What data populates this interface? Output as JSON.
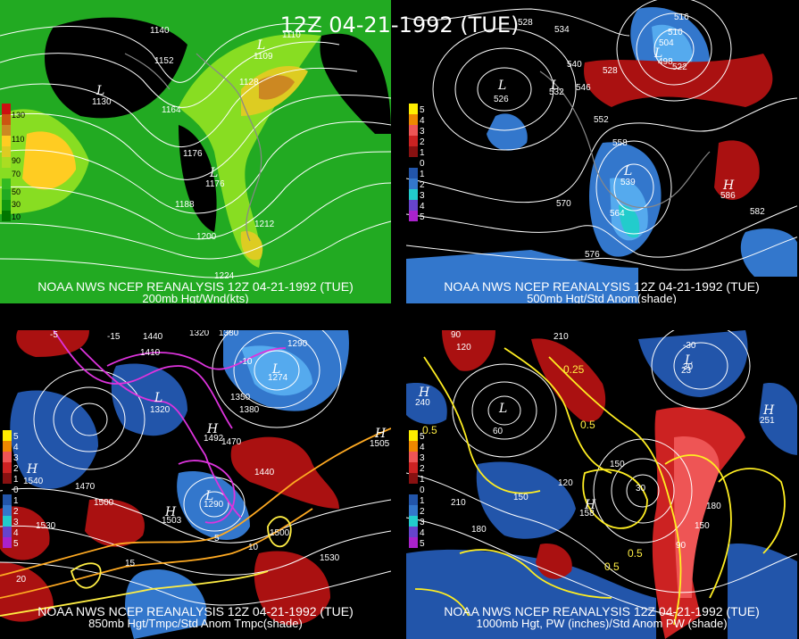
{
  "title": "12Z 04-21-1992 (TUE)",
  "panels": {
    "p200": {
      "source": "NOAA NWS NCEP REANALYSIS 12Z 04-21-1992 (TUE)",
      "field": "200mb Hgt/Wnd(kts)",
      "contour_labels": [
        "1140",
        "1152",
        "1164",
        "1176",
        "1188",
        "1200",
        "1212",
        "1224",
        "1128",
        "1110"
      ],
      "lows": [
        {
          "letter": "L",
          "value": "1130"
        },
        {
          "letter": "L",
          "value": "1176"
        },
        {
          "letter": "L",
          "value": "1109"
        }
      ],
      "legend": [
        "130",
        "110",
        "90",
        "70",
        "50",
        "30",
        "10"
      ]
    },
    "p500": {
      "source": "NOAA NWS NCEP REANALYSIS 12Z 04-21-1992 (TUE)",
      "field": "500mb Hgt/Std Anom(shade)",
      "contour_labels": [
        "528",
        "534",
        "540",
        "546",
        "552",
        "558",
        "570",
        "564",
        "576",
        "582",
        "516",
        "510",
        "504",
        "522",
        "528"
      ],
      "lows": [
        {
          "letter": "L",
          "value": "526"
        },
        {
          "letter": "L",
          "value": "498"
        },
        {
          "letter": "L",
          "value": "532"
        },
        {
          "letter": "L",
          "value": "539"
        }
      ],
      "highs": [
        {
          "letter": "H",
          "value": "586"
        }
      ],
      "legend": [
        "5",
        "4",
        "3",
        "2",
        "1",
        "0",
        "1",
        "2",
        "3",
        "4",
        "5"
      ]
    },
    "p850": {
      "source": "NOAA NWS NCEP REANALYSIS 12Z 04-21-1992 (TUE)",
      "field": "850mb Hgt/Tmpc/Std Anom Tmpc(shade)",
      "contour_labels": [
        "1440",
        "1410",
        "1320",
        "1380",
        "1290",
        "1350",
        "1380",
        "1470",
        "1500",
        "1530",
        "1470",
        "1440",
        "1500",
        "1530",
        "-15",
        "-10",
        "5",
        "10",
        "15",
        "20",
        "-5"
      ],
      "lows": [
        {
          "letter": "L",
          "value": "1320"
        },
        {
          "letter": "L",
          "value": "1290"
        },
        {
          "letter": "L",
          "value": "1274"
        }
      ],
      "highs": [
        {
          "letter": "H",
          "value": "1505"
        },
        {
          "letter": "H",
          "value": "1540"
        },
        {
          "letter": "H",
          "value": "1492"
        },
        {
          "letter": "H",
          "value": "1503"
        }
      ],
      "legend": [
        "5",
        "4",
        "3",
        "2",
        "1",
        "0",
        "1",
        "2",
        "3",
        "4",
        "5"
      ]
    },
    "p1000": {
      "source": "NOAA NWS NCEP REANALYSIS 12Z 04-21-1992 (TUE)",
      "field": "1000mb Hgt, PW (inches)/Std Anom PW (shade)",
      "contour_labels": [
        "90",
        "120",
        "210",
        "60",
        "30",
        "150",
        "180",
        "210",
        "150",
        "120",
        "180",
        "90",
        "150",
        "0.5",
        "0.25",
        "0.5",
        "0.5",
        "0.5",
        "-30"
      ],
      "lows": [
        {
          "letter": "L",
          "value": "30"
        },
        {
          "letter": "L",
          "value": "23"
        }
      ],
      "highs": [
        {
          "letter": "H",
          "value": "240"
        },
        {
          "letter": "H",
          "value": "158"
        },
        {
          "letter": "H",
          "value": "251"
        }
      ],
      "legend": [
        "5",
        "4",
        "3",
        "2",
        "1",
        "0",
        "1",
        "2",
        "3",
        "4",
        "5"
      ]
    }
  }
}
